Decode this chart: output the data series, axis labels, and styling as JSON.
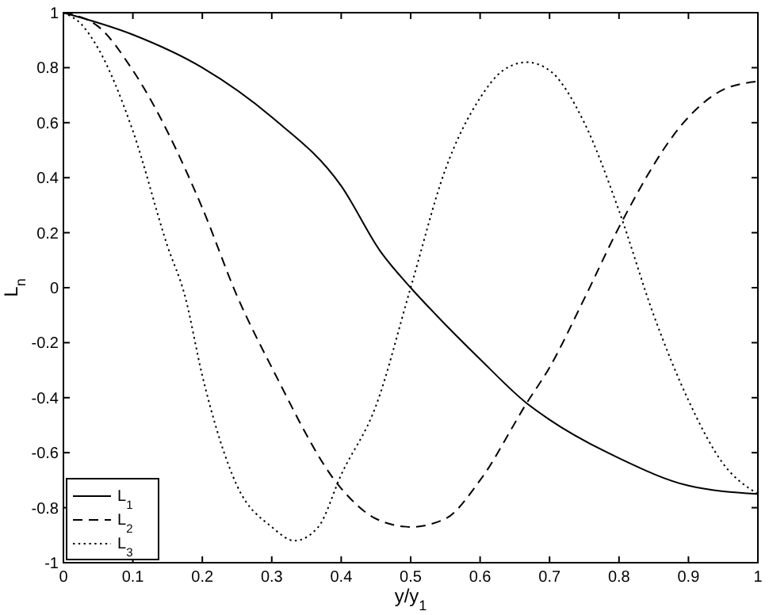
{
  "chart_data": {
    "type": "line",
    "xlabel": "y/y$_{1}$",
    "ylabel": "L$_{n}$",
    "xlim": [
      0,
      1
    ],
    "ylim": [
      -1,
      1
    ],
    "xticks": [
      0,
      0.1,
      0.2,
      0.3,
      0.4,
      0.5,
      0.6,
      0.7,
      0.8,
      0.9,
      1
    ],
    "yticks": [
      -1,
      -0.8,
      -0.6,
      -0.4,
      -0.2,
      0,
      0.2,
      0.4,
      0.6,
      0.8,
      1
    ],
    "grid": false,
    "legend": "bottom left",
    "series": [
      {
        "name": "L$_{1}$",
        "color": "#000000",
        "line_style": "solid",
        "x": [
          0,
          0.1,
          0.2,
          0.3,
          0.4,
          0.457,
          0.5,
          0.537,
          0.6,
          0.667,
          0.7,
          0.8,
          0.9,
          1
        ],
        "values": [
          1,
          0.92,
          0.8,
          0.62,
          0.37,
          0.13,
          0.0,
          -0.1,
          -0.26,
          -0.42,
          -0.48,
          -0.62,
          -0.72,
          -0.75
        ]
      },
      {
        "name": "L$_{2}$",
        "color": "#000000",
        "line_style": "dashed",
        "x": [
          0,
          0.05,
          0.1,
          0.2,
          0.25,
          0.3,
          0.4,
          0.45,
          0.5,
          0.55,
          0.6,
          0.667,
          0.7,
          0.75,
          0.8,
          0.9,
          0.95,
          1
        ],
        "values": [
          1,
          0.95,
          0.79,
          0.29,
          -0.03,
          -0.29,
          -0.73,
          -0.84,
          -0.87,
          -0.84,
          -0.7,
          -0.42,
          -0.29,
          -0.04,
          0.22,
          0.62,
          0.72,
          0.75
        ]
      },
      {
        "name": "L$_{3}$",
        "color": "#000000",
        "line_style": "dotted",
        "x": [
          0,
          0.025,
          0.05,
          0.1,
          0.15,
          0.175,
          0.2,
          0.25,
          0.3,
          0.333,
          0.367,
          0.4,
          0.45,
          0.5,
          0.55,
          0.6,
          0.633,
          0.667,
          0.7,
          0.75,
          0.8,
          0.85,
          0.9,
          0.95,
          1
        ],
        "values": [
          1,
          0.96,
          0.87,
          0.57,
          0.15,
          -0.03,
          -0.32,
          -0.72,
          -0.87,
          -0.92,
          -0.87,
          -0.68,
          -0.43,
          0,
          0.43,
          0.69,
          0.79,
          0.82,
          0.79,
          0.6,
          0.28,
          -0.1,
          -0.41,
          -0.64,
          -0.75
        ]
      }
    ]
  }
}
